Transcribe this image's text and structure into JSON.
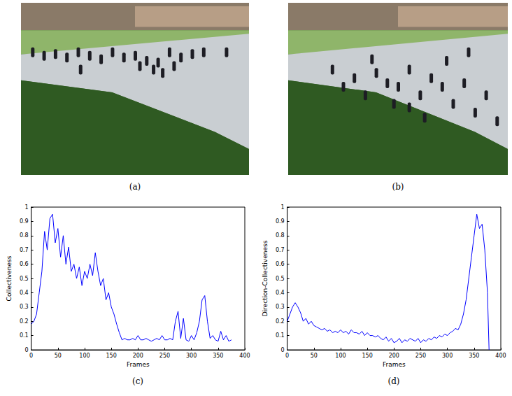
{
  "images": [
    {
      "caption": "(a)"
    },
    {
      "caption": "(b)"
    }
  ],
  "chart_data": [
    {
      "type": "line",
      "caption": "(c)",
      "x_label": "Frames",
      "y_label": "Collectiveness",
      "color": "#0000ff",
      "x": [
        0,
        5,
        10,
        15,
        20,
        25,
        30,
        35,
        40,
        45,
        50,
        55,
        60,
        65,
        70,
        75,
        80,
        85,
        90,
        95,
        100,
        105,
        110,
        115,
        120,
        125,
        130,
        135,
        140,
        145,
        150,
        155,
        160,
        165,
        170,
        175,
        180,
        185,
        190,
        195,
        200,
        205,
        210,
        215,
        220,
        225,
        230,
        235,
        240,
        245,
        250,
        255,
        260,
        265,
        270,
        275,
        280,
        285,
        290,
        295,
        300,
        305,
        310,
        315,
        320,
        325,
        330,
        335,
        340,
        345,
        350,
        355,
        360,
        365,
        370,
        375
      ],
      "values": [
        0.18,
        0.2,
        0.25,
        0.4,
        0.55,
        0.83,
        0.7,
        0.92,
        0.95,
        0.75,
        0.85,
        0.65,
        0.8,
        0.6,
        0.72,
        0.55,
        0.6,
        0.5,
        0.58,
        0.45,
        0.55,
        0.5,
        0.6,
        0.52,
        0.68,
        0.55,
        0.45,
        0.5,
        0.35,
        0.4,
        0.3,
        0.25,
        0.18,
        0.12,
        0.07,
        0.08,
        0.07,
        0.07,
        0.08,
        0.07,
        0.1,
        0.07,
        0.07,
        0.08,
        0.07,
        0.06,
        0.07,
        0.08,
        0.07,
        0.1,
        0.07,
        0.07,
        0.08,
        0.07,
        0.2,
        0.27,
        0.08,
        0.22,
        0.07,
        0.06,
        0.1,
        0.07,
        0.12,
        0.2,
        0.35,
        0.38,
        0.2,
        0.08,
        0.1,
        0.07,
        0.06,
        0.13,
        0.07,
        0.1,
        0.06,
        0.07
      ],
      "xlim": [
        0,
        400
      ],
      "xticks": [
        0,
        50,
        100,
        150,
        200,
        250,
        300,
        350,
        400
      ],
      "ylim": [
        0,
        1
      ],
      "yticks": [
        0,
        0.1,
        0.2,
        0.3,
        0.4,
        0.5,
        0.6,
        0.7,
        0.8,
        0.9,
        1
      ],
      "grid": false
    },
    {
      "type": "line",
      "caption": "(d)",
      "x_label": "Frames",
      "y_label": "Direction-Collectiveness",
      "color": "#0000ff",
      "x": [
        0,
        5,
        10,
        15,
        20,
        25,
        30,
        35,
        40,
        45,
        50,
        55,
        60,
        65,
        70,
        75,
        80,
        85,
        90,
        95,
        100,
        105,
        110,
        115,
        120,
        125,
        130,
        135,
        140,
        145,
        150,
        155,
        160,
        165,
        170,
        175,
        180,
        185,
        190,
        195,
        200,
        205,
        210,
        215,
        220,
        225,
        230,
        235,
        240,
        245,
        250,
        255,
        260,
        265,
        270,
        275,
        280,
        285,
        290,
        295,
        300,
        305,
        310,
        315,
        320,
        325,
        330,
        335,
        340,
        345,
        350,
        355,
        360,
        365,
        370,
        375,
        378
      ],
      "values": [
        0.2,
        0.25,
        0.3,
        0.33,
        0.3,
        0.26,
        0.2,
        0.22,
        0.18,
        0.2,
        0.17,
        0.16,
        0.15,
        0.14,
        0.15,
        0.13,
        0.14,
        0.12,
        0.13,
        0.12,
        0.14,
        0.12,
        0.13,
        0.11,
        0.14,
        0.12,
        0.12,
        0.11,
        0.13,
        0.1,
        0.12,
        0.1,
        0.1,
        0.09,
        0.1,
        0.08,
        0.07,
        0.09,
        0.06,
        0.08,
        0.05,
        0.06,
        0.08,
        0.05,
        0.07,
        0.06,
        0.08,
        0.07,
        0.06,
        0.08,
        0.05,
        0.07,
        0.06,
        0.08,
        0.07,
        0.09,
        0.08,
        0.1,
        0.09,
        0.11,
        0.1,
        0.12,
        0.13,
        0.15,
        0.14,
        0.18,
        0.25,
        0.35,
        0.5,
        0.65,
        0.8,
        0.95,
        0.85,
        0.88,
        0.7,
        0.4,
        0
      ],
      "xlim": [
        0,
        400
      ],
      "xticks": [
        0,
        50,
        100,
        150,
        200,
        250,
        300,
        350,
        400
      ],
      "ylim": [
        0,
        1
      ],
      "yticks": [
        0,
        0.1,
        0.2,
        0.3,
        0.4,
        0.5,
        0.6,
        0.7,
        0.8,
        0.9,
        1
      ],
      "grid": false
    }
  ]
}
